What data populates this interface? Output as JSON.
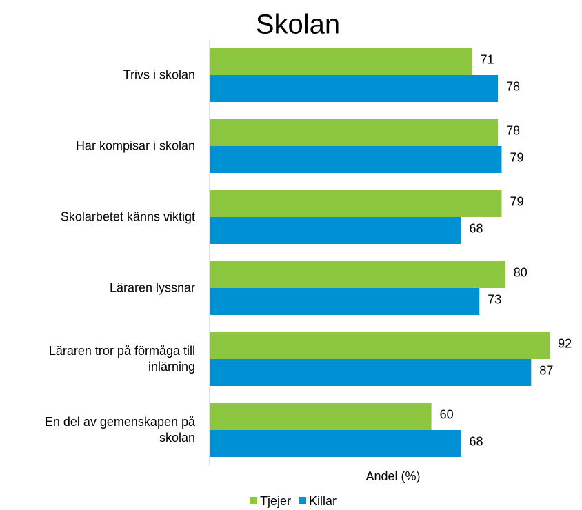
{
  "chart_data": {
    "type": "bar",
    "orientation": "horizontal",
    "title": "Skolan",
    "categories": [
      "Trivs i skolan",
      "Har kompisar i skolan",
      "Skolarbetet känns viktigt",
      "Läraren lyssnar",
      "Läraren tror på förmåga till inlärning",
      "En del av gemenskapen på skolan"
    ],
    "series": [
      {
        "name": "Tjejer",
        "color": "#8dc63f",
        "values": [
          71,
          78,
          79,
          80,
          92,
          60
        ]
      },
      {
        "name": "Killar",
        "color": "#0090d4",
        "values": [
          78,
          79,
          68,
          73,
          87,
          68
        ]
      }
    ],
    "xlabel": "Andel (%)",
    "xlim": [
      0,
      100
    ],
    "legend": "bottom"
  }
}
